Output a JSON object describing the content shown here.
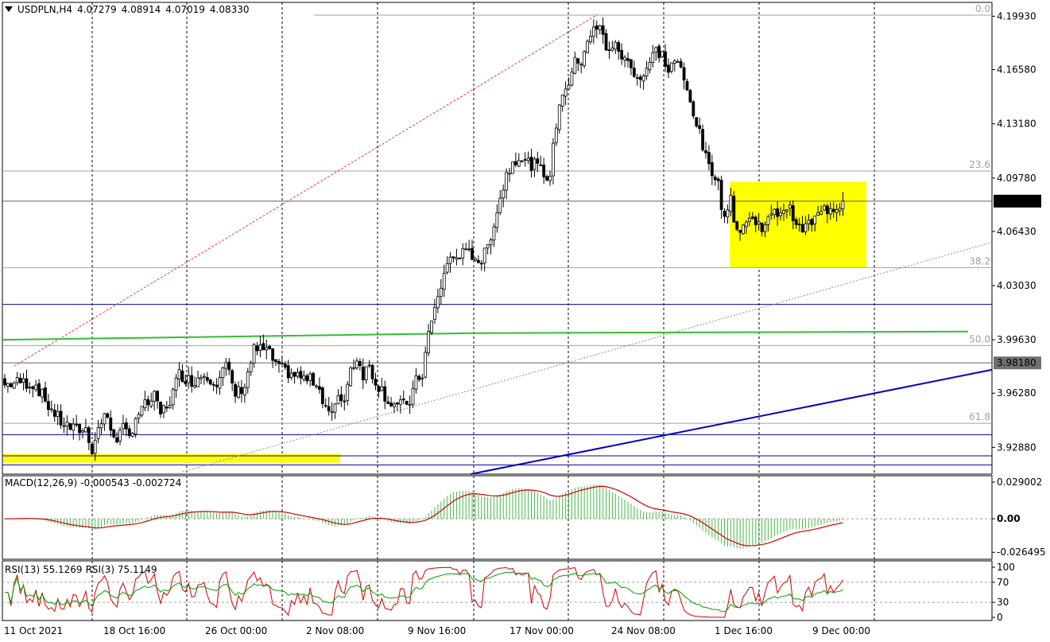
{
  "header": {
    "symbol": "USDPLN,H4",
    "open": "4.07279",
    "high": "4.08914",
    "low": "4.07019",
    "close": "4.08330"
  },
  "macd": {
    "label": "MACD(12,26,9)",
    "value1": "-0.000543",
    "value2": "-0.002724",
    "ticks": [
      "0.029002",
      "0.00",
      "-0.026495"
    ]
  },
  "rsi": {
    "label1": "RSI(13) 55.1269",
    "label2": "RSI(3) 75.1149",
    "ticks": [
      "100",
      "70",
      "30",
      "0"
    ]
  },
  "fib_levels": [
    "0.0",
    "23.6",
    "38.2",
    "50.0",
    "61.8"
  ],
  "colors": {
    "bull": "#008000",
    "bear": "#d00000",
    "macd_hist": "#48b848",
    "signal": "#d00000",
    "rsi13": "#00a000",
    "rsi3": "#d00000",
    "trend": "#0000c0",
    "ma": "#30c030",
    "zone": "#ffff00",
    "hline": "#0000a0"
  },
  "chart_data": {
    "type": "candlestick",
    "symbol": "USDPLN",
    "timeframe": "H4",
    "ylim": [
      3.912,
      4.208
    ],
    "y_ticks": [
      4.1993,
      4.1658,
      4.1318,
      4.0978,
      4.0643,
      4.0303,
      3.9963,
      3.9628,
      3.9288
    ],
    "current_price": 4.0833,
    "marked_price": 3.9818,
    "x_labels": [
      "11 Oct 2021",
      "18 Oct 16:00",
      "26 Oct 00:00",
      "2 Nov 08:00",
      "9 Nov 16:00",
      "17 Nov 00:00",
      "24 Nov 08:00",
      "1 Dec 16:00",
      "9 Dec 00:00"
    ],
    "close_path": [
      [
        0,
        3.968
      ],
      [
        5,
        3.97
      ],
      [
        10,
        3.968
      ],
      [
        14,
        3.955
      ],
      [
        18,
        3.945
      ],
      [
        22,
        3.94
      ],
      [
        26,
        3.94
      ],
      [
        28,
        3.928
      ],
      [
        30,
        3.94
      ],
      [
        32,
        3.95
      ],
      [
        34,
        3.94
      ],
      [
        36,
        3.935
      ],
      [
        38,
        3.94
      ],
      [
        40,
        3.935
      ],
      [
        42,
        3.948
      ],
      [
        45,
        3.955
      ],
      [
        48,
        3.96
      ],
      [
        50,
        3.95
      ],
      [
        53,
        3.958
      ],
      [
        56,
        3.975
      ],
      [
        60,
        3.97
      ],
      [
        64,
        3.975
      ],
      [
        68,
        3.97
      ],
      [
        71,
        3.98
      ],
      [
        74,
        3.962
      ],
      [
        77,
        3.968
      ],
      [
        80,
        3.99
      ],
      [
        84,
        3.99
      ],
      [
        88,
        3.978
      ],
      [
        92,
        3.975
      ],
      [
        96,
        3.972
      ],
      [
        100,
        3.97
      ],
      [
        103,
        3.955
      ],
      [
        105,
        3.95
      ],
      [
        107,
        3.958
      ],
      [
        109,
        3.96
      ],
      [
        111,
        3.978
      ],
      [
        113,
        3.985
      ],
      [
        115,
        3.975
      ],
      [
        117,
        3.98
      ],
      [
        119,
        3.97
      ],
      [
        121,
        3.965
      ],
      [
        123,
        3.958
      ],
      [
        126,
        3.955
      ],
      [
        128,
        3.955
      ],
      [
        130,
        3.958
      ],
      [
        132,
        3.97
      ],
      [
        134,
        3.975
      ],
      [
        136,
        4.0
      ],
      [
        138,
        4.015
      ],
      [
        140,
        4.03
      ],
      [
        142,
        4.045
      ],
      [
        146,
        4.05
      ],
      [
        150,
        4.05
      ],
      [
        153,
        4.045
      ],
      [
        155,
        4.055
      ],
      [
        157,
        4.07
      ],
      [
        159,
        4.085
      ],
      [
        161,
        4.1
      ],
      [
        163,
        4.108
      ],
      [
        165,
        4.112
      ],
      [
        167,
        4.108
      ],
      [
        171,
        4.105
      ],
      [
        173,
        4.1
      ],
      [
        175,
        4.1
      ],
      [
        177,
        4.132
      ],
      [
        179,
        4.152
      ],
      [
        181,
        4.158
      ],
      [
        183,
        4.17
      ],
      [
        185,
        4.172
      ],
      [
        187,
        4.185
      ],
      [
        189,
        4.19
      ],
      [
        191,
        4.192
      ],
      [
        193,
        4.18
      ],
      [
        196,
        4.18
      ],
      [
        199,
        4.172
      ],
      [
        202,
        4.165
      ],
      [
        204,
        4.16
      ],
      [
        207,
        4.17
      ],
      [
        209,
        4.178
      ],
      [
        211,
        4.175
      ],
      [
        213,
        4.165
      ],
      [
        215,
        4.172
      ],
      [
        217,
        4.165
      ],
      [
        219,
        4.152
      ],
      [
        221,
        4.14
      ],
      [
        223,
        4.125
      ],
      [
        225,
        4.11
      ],
      [
        227,
        4.1
      ],
      [
        229,
        4.1
      ],
      [
        230,
        4.075
      ],
      [
        233,
        4.083
      ],
      [
        235,
        4.065
      ],
      [
        239,
        4.072
      ],
      [
        243,
        4.068
      ],
      [
        247,
        4.075
      ],
      [
        251,
        4.08
      ],
      [
        253,
        4.075
      ],
      [
        255,
        4.065
      ],
      [
        259,
        4.07
      ],
      [
        263,
        4.078
      ],
      [
        267,
        4.08
      ],
      [
        269,
        4.083
      ]
    ],
    "overlays": {
      "fib_0": 4.2,
      "fib_23_6": 4.1022,
      "fib_38_2": 4.0416,
      "fib_50": 3.9927,
      "fib_61_8": 3.9439,
      "ma_line": [
        [
          3.9963,
          3.9995
        ],
        [
          4.0005,
          4.001
        ],
        [
          4.001,
          4.0015
        ]
      ],
      "support_lines": [
        4.0185,
        3.9368,
        3.9235,
        3.9178
      ],
      "zones": [
        {
          "price_top": 3.9248,
          "price_bottom": 3.9192
        },
        {
          "price_top": 4.0955,
          "price_bottom": 4.0418
        }
      ]
    },
    "indicators": {
      "macd_fast": 12,
      "macd_slow": 26,
      "macd_signal": 9,
      "macd_last": -0.000543,
      "macd_signal_last": -0.002724,
      "macd_ylim": [
        -0.032,
        0.034
      ],
      "rsi13_last": 55.1269,
      "rsi3_last": 75.1149,
      "rsi_levels": [
        70,
        30
      ]
    }
  }
}
